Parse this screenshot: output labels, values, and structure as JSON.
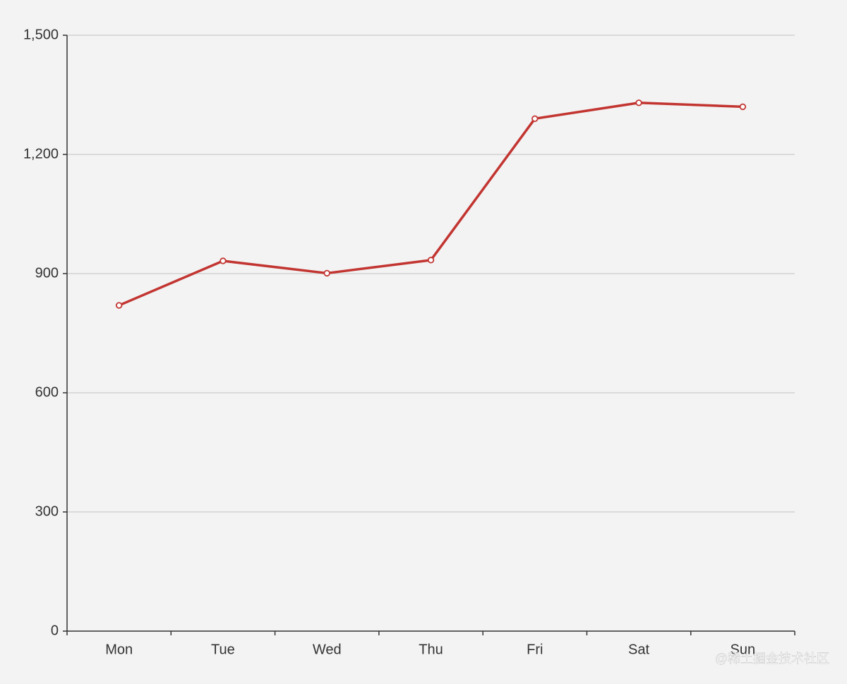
{
  "chart_data": {
    "type": "line",
    "categories": [
      "Mon",
      "Tue",
      "Wed",
      "Thu",
      "Fri",
      "Sat",
      "Sun"
    ],
    "series": [
      {
        "color": "#c23531",
        "values": [
          820,
          932,
          901,
          934,
          1290,
          1330,
          1320
        ]
      }
    ],
    "ylim": [
      0,
      1500
    ],
    "yticks": [
      0,
      300,
      600,
      900,
      {
        "value": 1200,
        "label": "1,200"
      },
      {
        "value": 1500,
        "label": "1,500"
      }
    ],
    "grid": true
  },
  "watermark": "@稀土掘金技术社区"
}
